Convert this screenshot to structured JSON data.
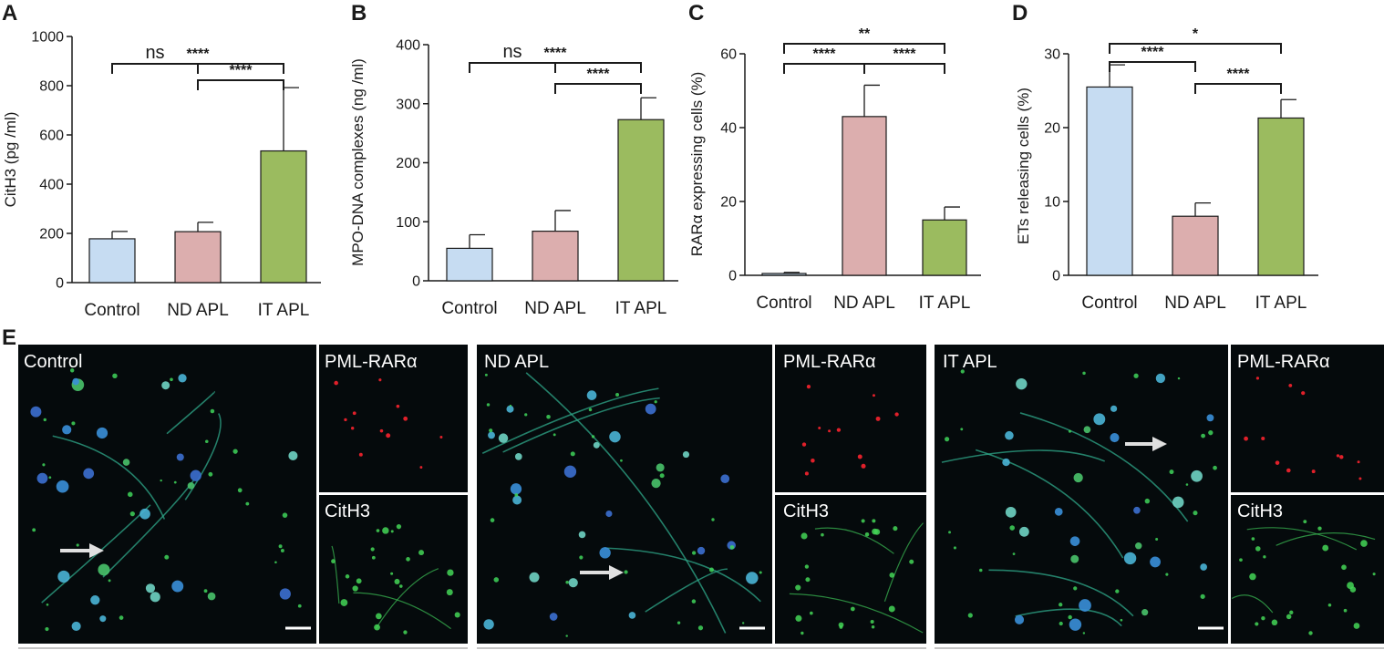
{
  "figure": {
    "bar_colors": [
      "#c6dcf2",
      "#dcaeae",
      "#9bbb5f"
    ],
    "micrograph_background": "#050a0c",
    "arrow_color": "#e0e0e0",
    "scale_bar_color": "#ffffff"
  },
  "chart_data": [
    {
      "panel": "A",
      "type": "bar",
      "categories": [
        "Control",
        "ND APL",
        "IT APL"
      ],
      "values": [
        178,
        207,
        535
      ],
      "errors": [
        30,
        38,
        257
      ],
      "ylabel": "CitH3 (pg /ml)",
      "ylim": [
        0,
        1000
      ],
      "yticks": [
        0,
        200,
        400,
        600,
        800,
        1000
      ],
      "comparisons": [
        {
          "from": 0,
          "to": 2,
          "label": "****"
        },
        {
          "from": 1,
          "to": 2,
          "label": "****"
        },
        {
          "from": 0,
          "to": 1,
          "label": "ns"
        }
      ]
    },
    {
      "panel": "B",
      "type": "bar",
      "categories": [
        "Control",
        "ND APL",
        "IT APL"
      ],
      "values": [
        55,
        84,
        273
      ],
      "errors": [
        23,
        35,
        37
      ],
      "ylabel": "MPO-DNA complexes  (ng /ml)",
      "ylim": [
        0,
        400
      ],
      "yticks": [
        0,
        100,
        200,
        300,
        400
      ],
      "comparisons": [
        {
          "from": 0,
          "to": 2,
          "label": "****"
        },
        {
          "from": 1,
          "to": 2,
          "label": "****"
        },
        {
          "from": 0,
          "to": 1,
          "label": "ns"
        }
      ]
    },
    {
      "panel": "C",
      "type": "bar",
      "categories": [
        "Control",
        "ND APL",
        "IT APL"
      ],
      "values": [
        0.5,
        43,
        15
      ],
      "errors": [
        0.3,
        8.5,
        3.5
      ],
      "ylabel": "RARα expressing cells (%)",
      "ylim": [
        0,
        60
      ],
      "yticks": [
        0,
        20,
        40,
        60
      ],
      "comparisons": [
        {
          "from": 0,
          "to": 2,
          "label": "**"
        },
        {
          "from": 0,
          "to": 1,
          "label": "****"
        },
        {
          "from": 1,
          "to": 2,
          "label": "****"
        }
      ]
    },
    {
      "panel": "D",
      "type": "bar",
      "categories": [
        "Control",
        "ND APL",
        "IT APL"
      ],
      "values": [
        25.5,
        8,
        21.3
      ],
      "errors": [
        3,
        1.8,
        2.5
      ],
      "ylabel": "ETs releasing cells (%)",
      "ylim": [
        0,
        30
      ],
      "yticks": [
        0,
        10,
        20,
        30
      ],
      "comparisons": [
        {
          "from": 0,
          "to": 2,
          "label": "*"
        },
        {
          "from": 0,
          "to": 1,
          "label": "****"
        },
        {
          "from": 1,
          "to": 2,
          "label": "****"
        }
      ]
    }
  ],
  "panel_e": {
    "label": "E",
    "groups": [
      {
        "main_label": "Control",
        "red_label": "PML-RARα",
        "green_label": "CitH3"
      },
      {
        "main_label": "ND APL",
        "red_label": "PML-RARα",
        "green_label": "CitH3"
      },
      {
        "main_label": "IT APL",
        "red_label": "PML-RARα",
        "green_label": "CitH3"
      }
    ]
  }
}
